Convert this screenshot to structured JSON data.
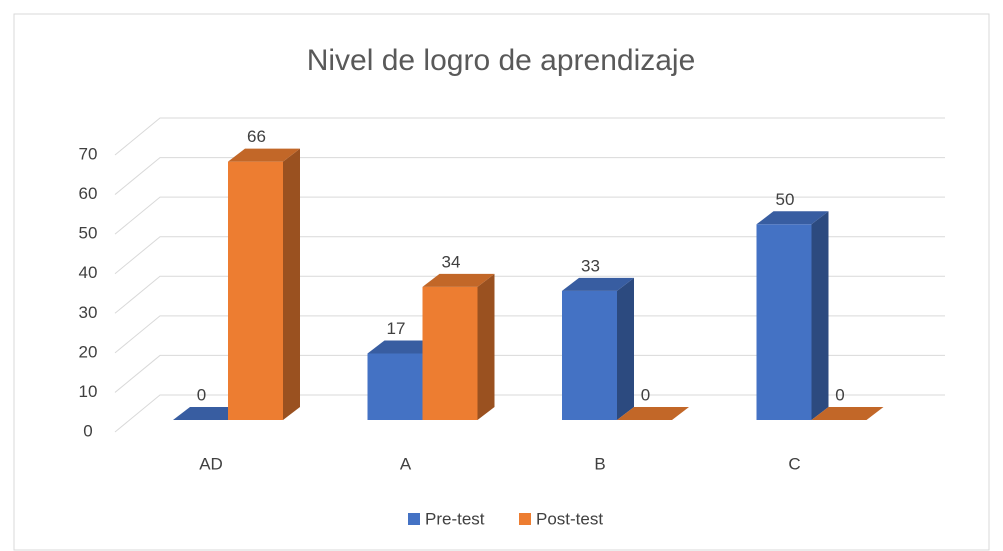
{
  "chart_data": {
    "type": "bar3d",
    "title": "Nivel de logro de aprendizaje",
    "categories": [
      "AD",
      "A",
      "B",
      "C"
    ],
    "series": [
      {
        "name": "Pre-test",
        "color": "#4472c4",
        "values": [
          0,
          17,
          33,
          50
        ]
      },
      {
        "name": "Post-test",
        "color": "#ed7d31",
        "values": [
          66,
          34,
          0,
          0
        ]
      }
    ],
    "ylim": [
      0,
      70
    ],
    "yticks": [
      0,
      10,
      20,
      30,
      40,
      50,
      60,
      70
    ],
    "grid": true,
    "legend": "bottom"
  }
}
